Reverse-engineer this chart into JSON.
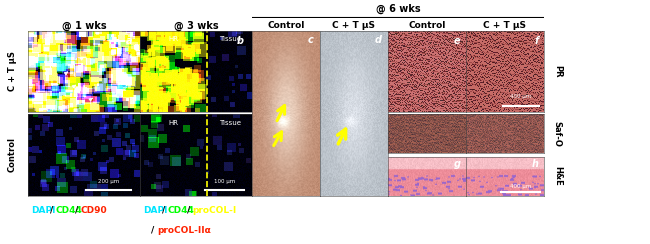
{
  "title_top": "@ 6 wks",
  "col_headers": [
    "@ 1 wks",
    "@ 3 wks",
    "Control",
    "C + T μS",
    "Control",
    "C + T μS"
  ],
  "row_labels_left": [
    "C + T μS",
    "Control"
  ],
  "row_labels_right": [
    "PR",
    "Saf-O",
    "H&E"
  ],
  "scale_bar_left": "200 μm",
  "scale_bar_mid": "100 μm",
  "scale_bar_right": "400 μm",
  "scale_bar_right_bottom": "400 μm",
  "bg_color": "#ffffff",
  "panel_a_bg": [
    0,
    0,
    30
  ],
  "panel_b_bg": [
    0,
    0,
    20
  ],
  "legend_left": [
    {
      "text": "DAPI",
      "color": "#00e5ff"
    },
    {
      "text": "/",
      "color": "#000000"
    },
    {
      "text": "CD44",
      "color": "#00ff00"
    },
    {
      "text": "/",
      "color": "#000000"
    },
    {
      "text": "CD90",
      "color": "#ff2200"
    }
  ],
  "legend_right_line1": [
    {
      "text": "DAPI",
      "color": "#00e5ff"
    },
    {
      "text": "/",
      "color": "#000000"
    },
    {
      "text": "CD44",
      "color": "#00ff00"
    },
    {
      "text": "/",
      "color": "#000000"
    },
    {
      "text": "proCOL-I",
      "color": "#ffff00"
    }
  ],
  "legend_right_line2": [
    {
      "text": "/",
      "color": "#000000"
    },
    {
      "text": "proCOL-IIα",
      "color": "#ff2200"
    }
  ]
}
